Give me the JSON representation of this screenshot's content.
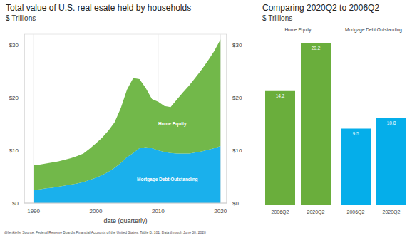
{
  "chart_data": [
    {
      "type": "area",
      "title": "Total value of U.S. real esate held by households",
      "subtitle": "$ Trillions",
      "x_label": "date (quarterly)",
      "stacked": true,
      "grid": true,
      "x": [
        1990,
        1991,
        1992,
        1993,
        1994,
        1995,
        1996,
        1997,
        1998,
        1999,
        2000,
        2001,
        2002,
        2003,
        2004,
        2005,
        2006,
        2007,
        2008,
        2009,
        2010,
        2011,
        2012,
        2013,
        2014,
        2015,
        2016,
        2017,
        2018,
        2019,
        2020
      ],
      "series": [
        {
          "name": "Mortgage Debt Outstanding",
          "color": "#1ab0ec",
          "values": [
            2.5,
            2.6,
            2.8,
            2.9,
            3.1,
            3.3,
            3.5,
            3.7,
            4.0,
            4.4,
            4.8,
            5.3,
            5.9,
            6.7,
            7.6,
            8.7,
            9.5,
            10.4,
            10.6,
            10.4,
            10.0,
            9.7,
            9.5,
            9.4,
            9.4,
            9.4,
            9.6,
            9.8,
            10.1,
            10.4,
            10.8
          ]
        },
        {
          "name": "Home Equity",
          "color": "#72b84a",
          "values": [
            4.7,
            4.7,
            4.7,
            4.8,
            4.8,
            4.9,
            5.0,
            5.2,
            5.4,
            5.9,
            6.5,
            7.1,
            7.8,
            8.6,
            10.4,
            12.8,
            14.2,
            13.1,
            11.2,
            9.3,
            9.2,
            8.7,
            8.7,
            10.2,
            11.6,
            12.9,
            14.2,
            15.5,
            16.9,
            18.4,
            20.2
          ]
        }
      ],
      "annotations": [
        "Home Equity",
        "Mortgage Debt Outstanding"
      ],
      "xlim": [
        1988.5,
        2021
      ],
      "xticks": [
        1990,
        2000,
        2010,
        2020
      ],
      "ylim": [
        0,
        32
      ],
      "yticks": [
        {
          "value": 0,
          "label": "$0"
        },
        {
          "value": 10,
          "label": "$10"
        },
        {
          "value": 20,
          "label": "$20"
        },
        {
          "value": 30,
          "label": "$30"
        }
      ]
    },
    {
      "type": "bar",
      "title": "Comparing 2020Q2 to 2006Q2",
      "subtitle": "$ Trillions",
      "categories": [
        "2006Q2",
        "2020Q2"
      ],
      "series": [
        {
          "name": "Home Equity",
          "color": "#6aae3c",
          "values": [
            14.2,
            20.2
          ]
        },
        {
          "name": "Mortgage Debt Outstanding",
          "color": "#05aeea",
          "values": [
            9.5,
            10.8
          ]
        }
      ],
      "ylim": [
        0,
        20.5
      ],
      "data_labels": true,
      "tick_labels": "x"
    }
  ],
  "caption": "@lenkiefer Source: Federal Reserve Board's Financial Accounts of the United States, Table B. 101. Data through June 30, 2020"
}
